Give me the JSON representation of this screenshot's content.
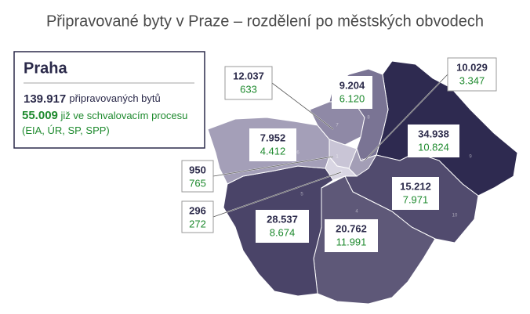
{
  "title": "Připravované byty v Praze – rozdělení po městských obvodech",
  "summary": {
    "heading": "Praha",
    "total": "139.917",
    "total_text": "připravovaných bytů",
    "approved": "55.009",
    "approved_text": "již ve schvalovacím procesu (EIA, ÚR, SP, SPP)"
  },
  "districts": [
    {
      "number": "1",
      "total": "950",
      "approved": "765"
    },
    {
      "number": "2",
      "total": "296",
      "approved": "272"
    },
    {
      "number": "3",
      "total": "10.029",
      "approved": "3.347"
    },
    {
      "number": "4",
      "total": "20.762",
      "approved": "11.991"
    },
    {
      "number": "5",
      "total": "28.537",
      "approved": "8.674"
    },
    {
      "number": "6",
      "total": "7.952",
      "approved": "4.412"
    },
    {
      "number": "7",
      "total": "12.037",
      "approved": "633"
    },
    {
      "number": "8",
      "total": "9.204",
      "approved": "6.120"
    },
    {
      "number": "9",
      "total": "34.938",
      "approved": "10.824"
    },
    {
      "number": "10",
      "total": "15.212",
      "approved": "7.971"
    }
  ]
}
